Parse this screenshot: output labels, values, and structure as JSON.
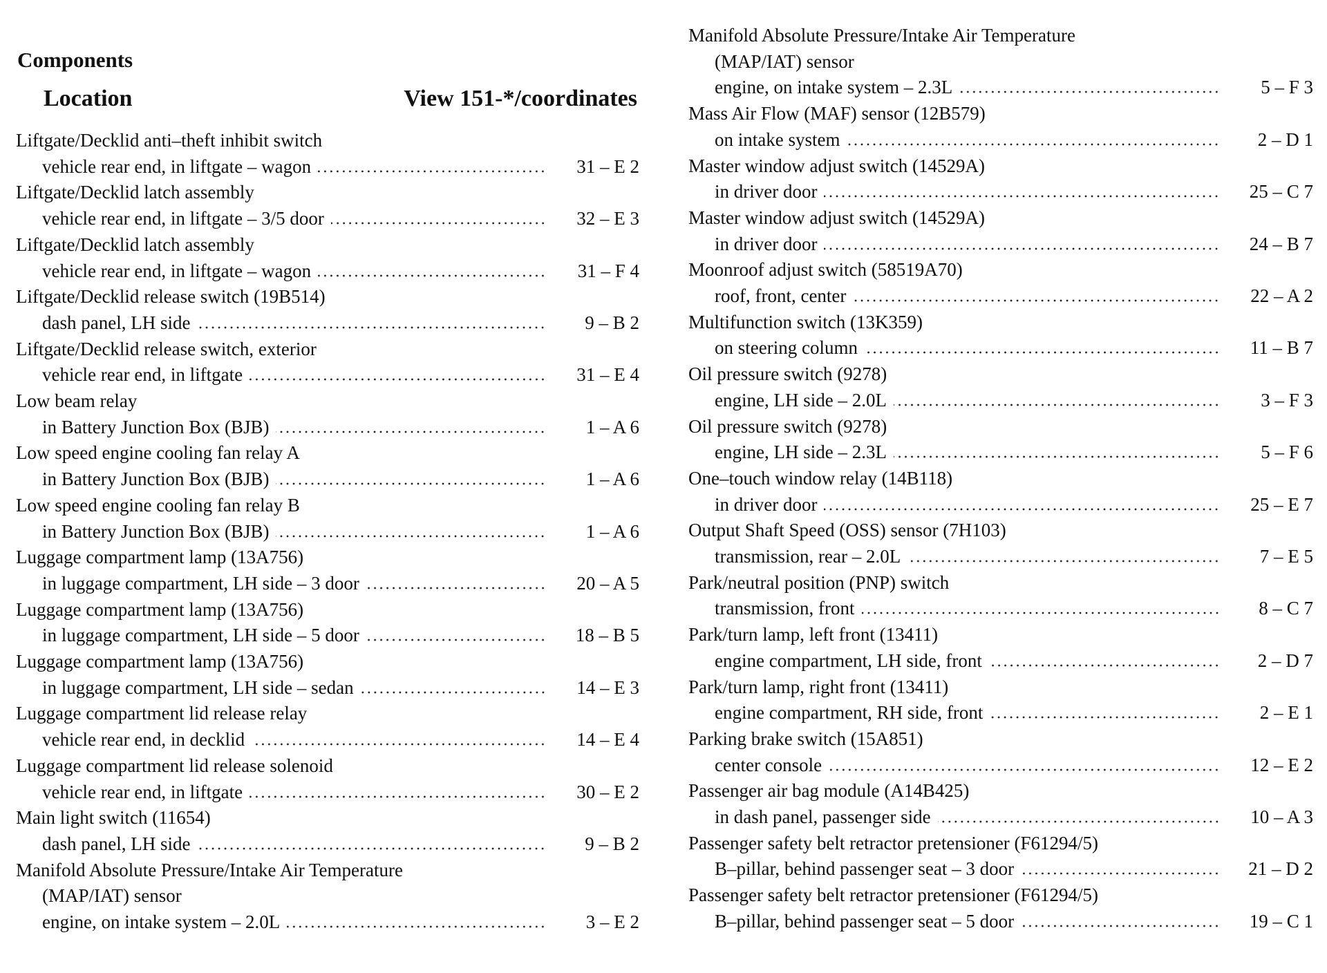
{
  "header": {
    "title": "Components",
    "location_heading": "Location",
    "view_heading": "View 151-*/coordinates"
  },
  "left_column": {
    "entries": [
      {
        "name": [
          "Liftgate/Decklid anti–theft inhibit switch"
        ],
        "location": "vehicle rear end, in liftgate – wagon",
        "ref": "31 – E 2"
      },
      {
        "name": [
          "Liftgate/Decklid latch assembly"
        ],
        "location": "vehicle rear end, in liftgate – 3/5 door",
        "ref": "32 – E 3"
      },
      {
        "name": [
          "Liftgate/Decklid latch assembly"
        ],
        "location": "vehicle rear end, in liftgate – wagon",
        "ref": "31 – F 4"
      },
      {
        "name": [
          "Liftgate/Decklid release switch (19B514)"
        ],
        "location": "dash panel, LH side",
        "ref": "9 – B 2"
      },
      {
        "name": [
          "Liftgate/Decklid release switch, exterior"
        ],
        "location": "vehicle rear end, in liftgate",
        "ref": "31 – E 4"
      },
      {
        "name": [
          "Low beam relay"
        ],
        "location": "in Battery Junction Box (BJB)",
        "ref": "1 – A 6"
      },
      {
        "name": [
          "Low speed engine cooling fan relay A"
        ],
        "location": "in Battery Junction Box (BJB)",
        "ref": "1 – A 6"
      },
      {
        "name": [
          "Low speed engine cooling fan relay B"
        ],
        "location": "in Battery Junction Box (BJB)",
        "ref": "1 – A 6"
      },
      {
        "name": [
          "Luggage compartment lamp (13A756)"
        ],
        "location": "in luggage compartment, LH side – 3 door",
        "ref": "20 – A 5"
      },
      {
        "name": [
          "Luggage compartment lamp (13A756)"
        ],
        "location": "in luggage compartment, LH side – 5 door",
        "ref": "18 – B 5"
      },
      {
        "name": [
          "Luggage compartment lamp (13A756)"
        ],
        "location": "in luggage compartment, LH side – sedan",
        "ref": "14 – E 3"
      },
      {
        "name": [
          "Luggage compartment lid release relay"
        ],
        "location": "vehicle rear end, in decklid",
        "ref": "14 – E 4"
      },
      {
        "name": [
          "Luggage compartment lid release solenoid"
        ],
        "location": "vehicle rear end, in liftgate",
        "ref": "30 – E 2"
      },
      {
        "name": [
          "Main light switch (11654)"
        ],
        "location": "dash panel, LH side",
        "ref": "9 – B 2"
      },
      {
        "name": [
          "Manifold Absolute Pressure/Intake Air Temperature",
          "(MAP/IAT) sensor"
        ],
        "location": "engine, on intake system – 2.0L",
        "ref": "3 – E 2"
      }
    ]
  },
  "right_column": {
    "entries": [
      {
        "name": [
          "Manifold Absolute Pressure/Intake Air Temperature",
          "(MAP/IAT) sensor"
        ],
        "location": "engine, on intake system – 2.3L",
        "ref": "5 – F 3"
      },
      {
        "name": [
          "Mass Air Flow (MAF) sensor (12B579)"
        ],
        "location": "on intake system",
        "ref": "2 – D 1"
      },
      {
        "name": [
          "Master window adjust switch (14529A)"
        ],
        "location": "in driver door",
        "ref": "25 – C 7"
      },
      {
        "name": [
          "Master window adjust switch (14529A)"
        ],
        "location": "in driver door",
        "ref": "24 – B 7"
      },
      {
        "name": [
          "Moonroof adjust switch (58519A70)"
        ],
        "location": "roof, front, center",
        "ref": "22 – A 2"
      },
      {
        "name": [
          "Multifunction switch (13K359)"
        ],
        "location": "on steering column",
        "ref": "11 – B 7"
      },
      {
        "name": [
          "Oil pressure switch (9278)"
        ],
        "location": "engine, LH side – 2.0L",
        "ref": "3 – F 3"
      },
      {
        "name": [
          "Oil pressure switch (9278)"
        ],
        "location": "engine, LH side – 2.3L",
        "ref": "5 – F 6"
      },
      {
        "name": [
          "One–touch window relay (14B118)"
        ],
        "location": "in driver door",
        "ref": "25 – E 7"
      },
      {
        "name": [
          "Output Shaft Speed (OSS) sensor (7H103)"
        ],
        "location": "transmission, rear – 2.0L",
        "ref": "7 – E 5"
      },
      {
        "name": [
          "Park/neutral position (PNP) switch"
        ],
        "location": "transmission, front",
        "ref": "8 – C 7"
      },
      {
        "name": [
          "Park/turn lamp, left front (13411)"
        ],
        "location": "engine compartment, LH side, front",
        "ref": "2 – D 7"
      },
      {
        "name": [
          "Park/turn lamp, right front (13411)"
        ],
        "location": "engine compartment, RH side, front",
        "ref": "2 – E 1"
      },
      {
        "name": [
          "Parking brake switch (15A851)"
        ],
        "location": "center console",
        "ref": "12 – E 2"
      },
      {
        "name": [
          "Passenger air bag module (A14B425)"
        ],
        "location": "in dash panel, passenger side",
        "ref": "10 – A 3"
      },
      {
        "name": [
          "Passenger safety belt retractor pretensioner (F61294/5)"
        ],
        "location": "B–pillar, behind passenger seat – 3 door",
        "ref": "21 – D 2"
      },
      {
        "name": [
          "Passenger safety belt retractor pretensioner (F61294/5)"
        ],
        "location": "B–pillar, behind passenger seat – 5 door",
        "ref": "19 – C 1"
      }
    ]
  }
}
